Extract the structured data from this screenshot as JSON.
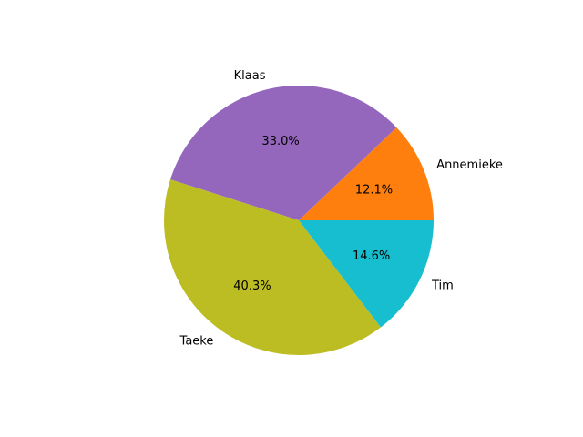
{
  "chart_data": {
    "type": "pie",
    "title": "",
    "start_angle_deg": 0,
    "direction": "counterclockwise",
    "slices": [
      {
        "label": "Annemieke",
        "percent": 12.1,
        "percent_label": "12.1%",
        "color": "#ff7f0e"
      },
      {
        "label": "Klaas",
        "percent": 33.0,
        "percent_label": "33.0%",
        "color": "#9467bd"
      },
      {
        "label": "Taeke",
        "percent": 40.3,
        "percent_label": "40.3%",
        "color": "#bcbd22"
      },
      {
        "label": "Tim",
        "percent": 14.6,
        "percent_label": "14.6%",
        "color": "#17becf"
      }
    ]
  }
}
